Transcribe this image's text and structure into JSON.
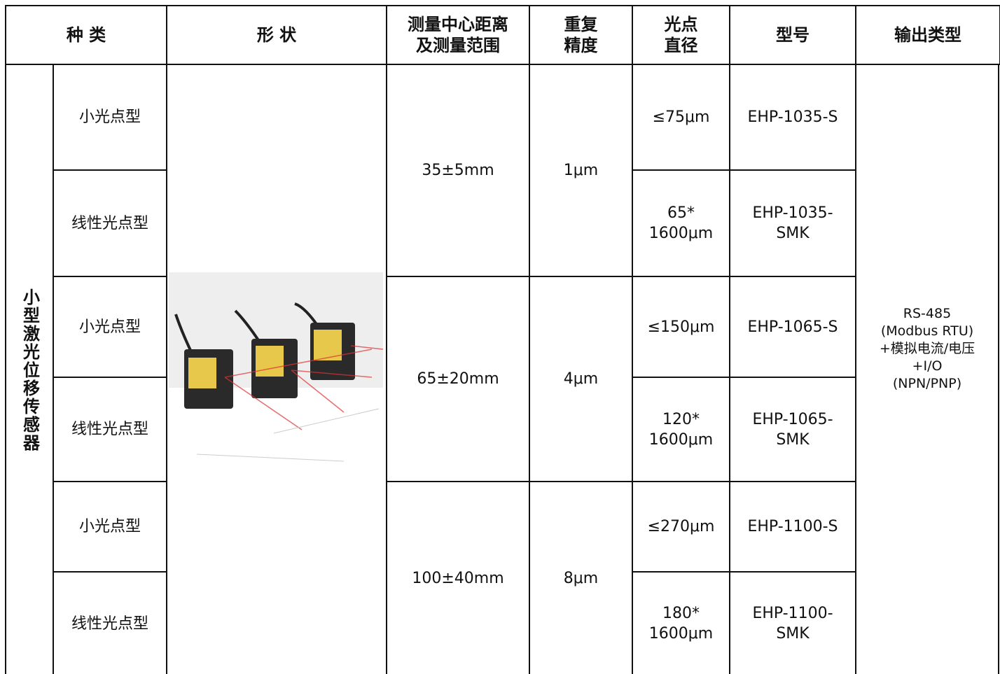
{
  "header": [
    [
      "种 类"
    ],
    [
      "形 状"
    ],
    [
      "测量中心距离",
      "及测量范围"
    ],
    [
      "重复",
      "精度"
    ],
    [
      "光点",
      "直径"
    ],
    [
      "型号"
    ],
    [
      "输出类型"
    ]
  ],
  "category": "小型激光位移传感器",
  "groups": [
    {
      "range": "35±5mm",
      "repeat": "1μm",
      "rows": [
        {
          "type": "小光点型",
          "spot": [
            "≤75μm"
          ],
          "model": [
            "EHP-1035-S"
          ]
        },
        {
          "type": "线性光点型",
          "spot": [
            "65*",
            "1600μm"
          ],
          "model": [
            "EHP-1035-",
            "SMK"
          ]
        }
      ]
    },
    {
      "range": "65±20mm",
      "repeat": "4μm",
      "rows": [
        {
          "type": "小光点型",
          "spot": [
            "≤150μm"
          ],
          "model": [
            "EHP-1065-S"
          ]
        },
        {
          "type": "线性光点型",
          "spot": [
            "120*",
            "1600μm"
          ],
          "model": [
            "EHP-1065-",
            "SMK"
          ]
        }
      ]
    },
    {
      "range": "100±40mm",
      "repeat": "8μm",
      "rows": [
        {
          "type": "小光点型",
          "spot": [
            "≤270μm"
          ],
          "model": [
            "EHP-1100-S"
          ]
        },
        {
          "type": "线性光点型",
          "spot": [
            "180*",
            "1600μm"
          ],
          "model": [
            "EHP-1100-",
            "SMK"
          ]
        }
      ]
    }
  ],
  "output": [
    "RS-485",
    "(Modbus RTU)",
    "+模拟电流/电压",
    "+I/O",
    "(NPN/PNP)"
  ]
}
